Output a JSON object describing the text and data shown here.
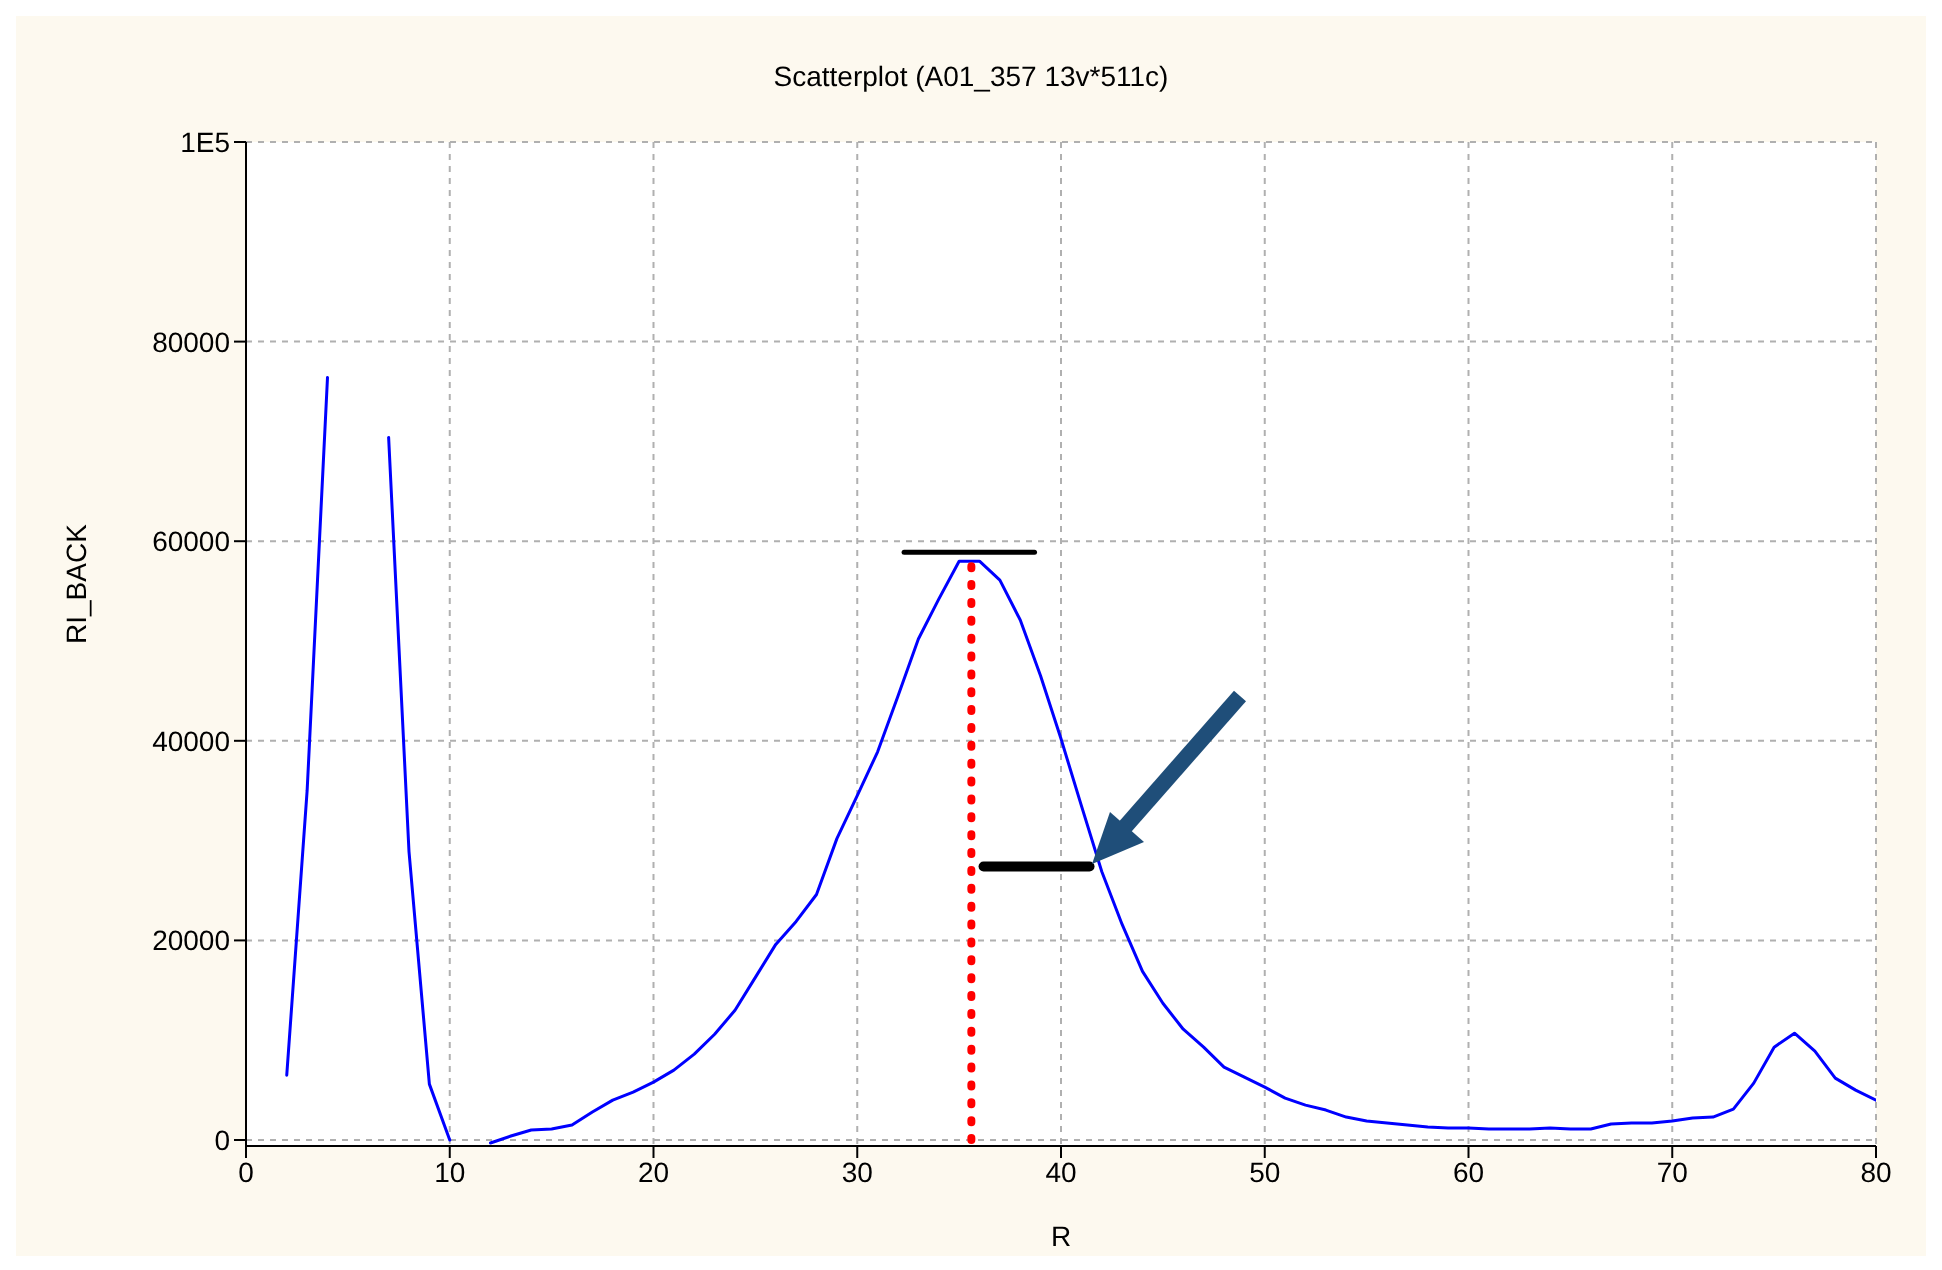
{
  "chart_data": {
    "type": "line",
    "title": "Scatterplot (A01_357 13v*511c)",
    "xlabel": "R",
    "ylabel": "RI_BACK",
    "x": [
      2,
      3,
      4,
      5,
      6,
      7,
      8,
      9,
      10,
      11,
      12,
      13,
      14,
      15,
      16,
      17,
      18,
      19,
      20,
      21,
      22,
      23,
      24,
      25,
      26,
      27,
      28,
      29,
      30,
      31,
      32,
      33,
      34,
      35,
      36,
      37,
      38,
      39,
      40,
      41,
      42,
      43,
      44,
      45,
      46,
      47,
      48,
      49,
      50,
      51,
      52,
      53,
      54,
      55,
      56,
      57,
      58,
      59,
      60,
      61,
      62,
      63,
      64,
      65,
      66,
      67,
      68,
      69,
      70,
      71,
      72,
      73,
      74,
      75,
      76,
      77,
      78,
      79,
      80
    ],
    "series": [
      {
        "color": "#0000ff",
        "values": [
          6500,
          35000,
          76400,
          null,
          null,
          70400,
          28900,
          5600,
          0,
          null,
          -300,
          400,
          1000,
          1100,
          1500,
          2800,
          4000,
          4800,
          5800,
          7000,
          8600,
          10600,
          13000,
          16300,
          19600,
          21900,
          24600,
          30200,
          34500,
          38900,
          44500,
          50200,
          54200,
          58000,
          58000,
          56100,
          52100,
          46500,
          40200,
          33500,
          26900,
          21600,
          16900,
          13700,
          11100,
          9300,
          7300,
          6300,
          5300,
          4200,
          3500,
          3000,
          2300,
          1900,
          1700,
          1500,
          1300,
          1200,
          1200,
          1100,
          1100,
          1100,
          1200,
          1100,
          1100,
          1600,
          1700,
          1700,
          1900,
          2200,
          2300,
          3100,
          5700,
          9300,
          10700,
          8900,
          6200,
          5000,
          4000
        ]
      },
      {
        "type": "line",
        "color": "#000000",
        "x": [
          32.3,
          38.7
        ],
        "values": [
          58900,
          58900
        ]
      },
      {
        "type": "line",
        "color": "#ff0000",
        "line_style": "dotted",
        "x": [
          35.6,
          35.6
        ],
        "values": [
          0,
          57500
        ]
      },
      {
        "type": "line",
        "color": "#000000",
        "x": [
          36.2,
          41.4
        ],
        "values": [
          27400,
          27400
        ]
      }
    ],
    "xlim": [
      0,
      80
    ],
    "xticks": [
      0,
      10,
      20,
      30,
      40,
      50,
      60,
      70,
      80
    ],
    "ylim": [
      -600,
      100000
    ],
    "yticks": [
      0,
      20000,
      40000,
      60000,
      80000,
      {
        "value": 100000,
        "label": "1E5"
      }
    ],
    "grid": true
  }
}
